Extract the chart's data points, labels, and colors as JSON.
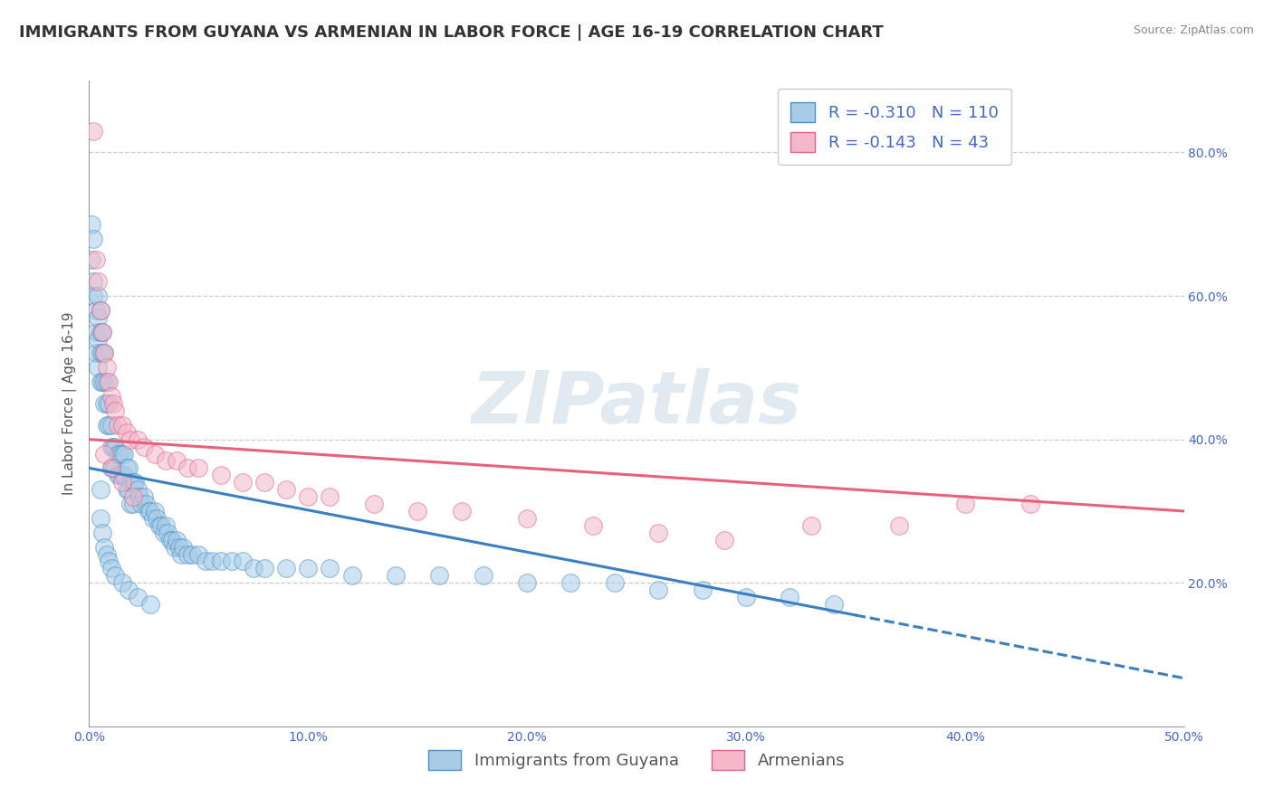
{
  "title": "IMMIGRANTS FROM GUYANA VS ARMENIAN IN LABOR FORCE | AGE 16-19 CORRELATION CHART",
  "source": "Source: ZipAtlas.com",
  "ylabel": "In Labor Force | Age 16-19",
  "xlim": [
    0.0,
    0.5
  ],
  "ylim": [
    0.0,
    0.9
  ],
  "xticks": [
    0.0,
    0.1,
    0.2,
    0.3,
    0.4,
    0.5
  ],
  "xticklabels": [
    "0.0%",
    "10.0%",
    "20.0%",
    "30.0%",
    "40.0%",
    "50.0%"
  ],
  "yticks_right": [
    0.2,
    0.4,
    0.6,
    0.8
  ],
  "yticklabels_right": [
    "20.0%",
    "40.0%",
    "60.0%",
    "80.0%"
  ],
  "legend_R_guyana": "-0.310",
  "legend_N_guyana": "110",
  "legend_R_armenian": "-0.143",
  "legend_N_armenian": "43",
  "blue_fill": "#a8cce8",
  "pink_fill": "#f4b8c8",
  "blue_edge": "#4a90c4",
  "pink_edge": "#e06090",
  "blue_line": "#3a7fc1",
  "pink_line": "#e8607a",
  "watermark": "ZIPatlas",
  "background_color": "#ffffff",
  "grid_color": "#cccccc",
  "tick_color": "#4466cc",
  "title_fontsize": 13,
  "axis_label_fontsize": 11,
  "tick_fontsize": 10,
  "legend_fontsize": 13,
  "guyana_x": [
    0.001,
    0.001,
    0.002,
    0.002,
    0.002,
    0.003,
    0.003,
    0.003,
    0.004,
    0.004,
    0.004,
    0.004,
    0.005,
    0.005,
    0.005,
    0.005,
    0.006,
    0.006,
    0.006,
    0.007,
    0.007,
    0.007,
    0.008,
    0.008,
    0.008,
    0.009,
    0.009,
    0.01,
    0.01,
    0.01,
    0.011,
    0.011,
    0.012,
    0.012,
    0.013,
    0.013,
    0.014,
    0.014,
    0.015,
    0.015,
    0.016,
    0.016,
    0.017,
    0.017,
    0.018,
    0.018,
    0.019,
    0.019,
    0.02,
    0.02,
    0.021,
    0.022,
    0.023,
    0.024,
    0.025,
    0.026,
    0.027,
    0.028,
    0.029,
    0.03,
    0.031,
    0.032,
    0.033,
    0.034,
    0.035,
    0.036,
    0.037,
    0.038,
    0.039,
    0.04,
    0.041,
    0.042,
    0.043,
    0.045,
    0.047,
    0.05,
    0.053,
    0.056,
    0.06,
    0.065,
    0.07,
    0.075,
    0.08,
    0.09,
    0.1,
    0.11,
    0.12,
    0.14,
    0.16,
    0.18,
    0.2,
    0.22,
    0.24,
    0.26,
    0.28,
    0.3,
    0.32,
    0.34,
    0.005,
    0.005,
    0.006,
    0.007,
    0.008,
    0.009,
    0.01,
    0.012,
    0.015,
    0.018,
    0.022,
    0.028
  ],
  "guyana_y": [
    0.7,
    0.65,
    0.68,
    0.62,
    0.6,
    0.58,
    0.55,
    0.52,
    0.6,
    0.57,
    0.54,
    0.5,
    0.58,
    0.55,
    0.52,
    0.48,
    0.55,
    0.52,
    0.48,
    0.52,
    0.48,
    0.45,
    0.48,
    0.45,
    0.42,
    0.45,
    0.42,
    0.42,
    0.39,
    0.36,
    0.39,
    0.36,
    0.39,
    0.36,
    0.38,
    0.35,
    0.38,
    0.35,
    0.38,
    0.35,
    0.38,
    0.35,
    0.36,
    0.33,
    0.36,
    0.33,
    0.34,
    0.31,
    0.34,
    0.31,
    0.34,
    0.33,
    0.32,
    0.31,
    0.32,
    0.31,
    0.3,
    0.3,
    0.29,
    0.3,
    0.29,
    0.28,
    0.28,
    0.27,
    0.28,
    0.27,
    0.26,
    0.26,
    0.25,
    0.26,
    0.25,
    0.24,
    0.25,
    0.24,
    0.24,
    0.24,
    0.23,
    0.23,
    0.23,
    0.23,
    0.23,
    0.22,
    0.22,
    0.22,
    0.22,
    0.22,
    0.21,
    0.21,
    0.21,
    0.21,
    0.2,
    0.2,
    0.2,
    0.19,
    0.19,
    0.18,
    0.18,
    0.17,
    0.33,
    0.29,
    0.27,
    0.25,
    0.24,
    0.23,
    0.22,
    0.21,
    0.2,
    0.19,
    0.18,
    0.17
  ],
  "armenian_x": [
    0.002,
    0.003,
    0.004,
    0.005,
    0.006,
    0.007,
    0.008,
    0.009,
    0.01,
    0.011,
    0.012,
    0.013,
    0.015,
    0.017,
    0.019,
    0.022,
    0.025,
    0.03,
    0.035,
    0.04,
    0.045,
    0.05,
    0.06,
    0.07,
    0.08,
    0.09,
    0.1,
    0.11,
    0.13,
    0.15,
    0.17,
    0.2,
    0.23,
    0.26,
    0.29,
    0.33,
    0.37,
    0.4,
    0.43,
    0.007,
    0.01,
    0.015,
    0.02
  ],
  "armenian_y": [
    0.83,
    0.65,
    0.62,
    0.58,
    0.55,
    0.52,
    0.5,
    0.48,
    0.46,
    0.45,
    0.44,
    0.42,
    0.42,
    0.41,
    0.4,
    0.4,
    0.39,
    0.38,
    0.37,
    0.37,
    0.36,
    0.36,
    0.35,
    0.34,
    0.34,
    0.33,
    0.32,
    0.32,
    0.31,
    0.3,
    0.3,
    0.29,
    0.28,
    0.27,
    0.26,
    0.28,
    0.28,
    0.31,
    0.31,
    0.38,
    0.36,
    0.34,
    0.32
  ]
}
